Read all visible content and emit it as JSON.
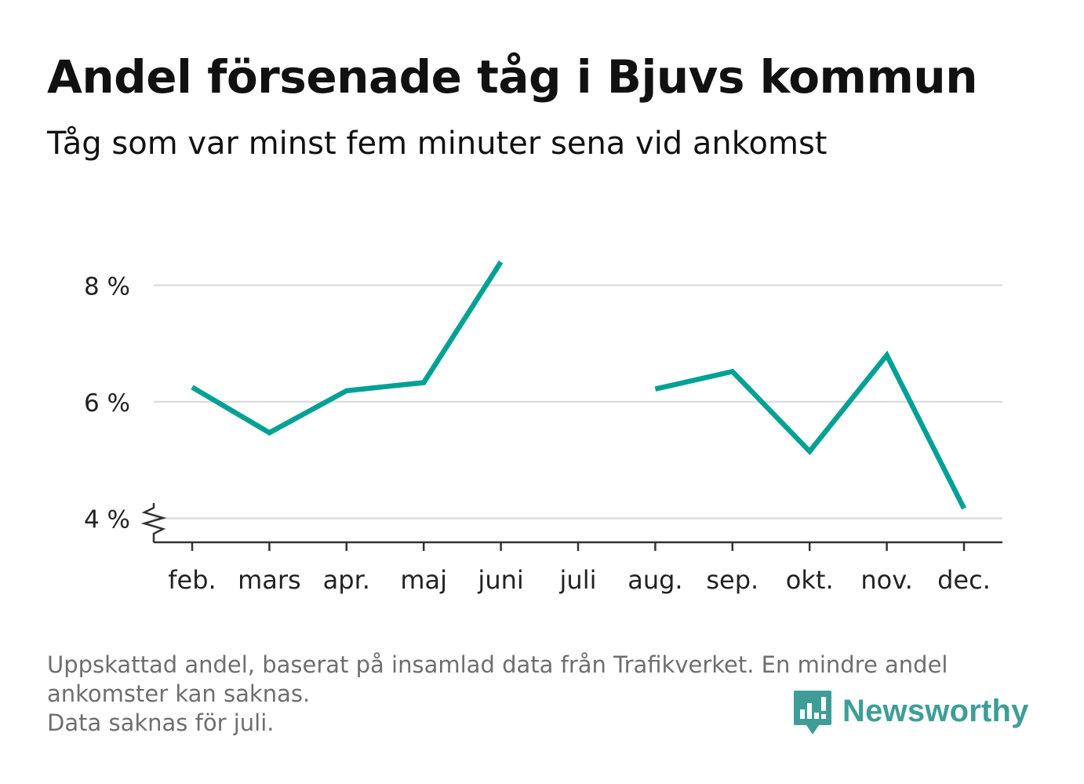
{
  "title": "Andel försenade tåg i Bjuvs kommun",
  "subtitle": "Tåg som var minst fem minuter sena vid ankomst",
  "footnote": {
    "line1": "Uppskattad andel, baserat på insamlad data från Trafikverket. En mindre andel",
    "line2": "ankomster kan saknas.",
    "line3": "Data saknas för juli."
  },
  "logo": {
    "text": "Newsworthy",
    "icon": "newsworthy-chart-bubble-icon",
    "color": "#3e9e97"
  },
  "colors": {
    "series": "#00a195",
    "grid": "#dddddd",
    "axis": "#333333",
    "text": "#111111",
    "muted": "#6e6e6e"
  },
  "chart_data": {
    "type": "line",
    "categories": [
      "feb.",
      "mars",
      "apr.",
      "maj",
      "juni",
      "juli",
      "aug.",
      "sep.",
      "okt.",
      "nov.",
      "dec."
    ],
    "series": [
      {
        "values": [
          6.25,
          5.47,
          6.19,
          6.33,
          8.4,
          null,
          6.22,
          6.52,
          5.15,
          6.8,
          4.17
        ]
      }
    ],
    "y_ticks": [
      4,
      6,
      8
    ],
    "y_tick_labels": [
      "4 %",
      "6 %",
      "8 %"
    ],
    "ylim": [
      4,
      8.4
    ],
    "y_axis_break": true,
    "grid": true,
    "legend": "none"
  }
}
